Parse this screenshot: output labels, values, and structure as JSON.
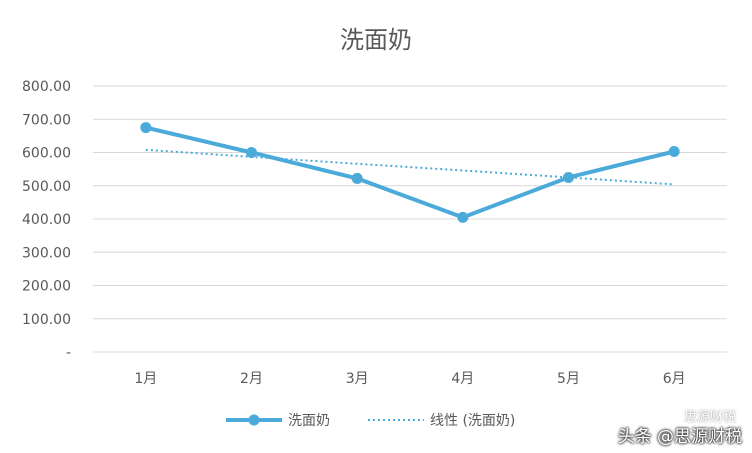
{
  "chart_data": {
    "type": "line",
    "title": "洗面奶",
    "categories": [
      "1月",
      "2月",
      "3月",
      "4月",
      "5月",
      "6月"
    ],
    "series": [
      {
        "name": "洗面奶",
        "values": [
          675,
          600,
          522,
          405,
          525,
          603
        ],
        "color": "#4baad9",
        "style": "solid-markers"
      },
      {
        "name": "线性 (洗面奶)",
        "values": [
          608,
          587,
          566,
          546,
          525,
          504
        ],
        "color": "#4baad9",
        "style": "dotted"
      }
    ],
    "y_ticks": [
      "-",
      "100.00",
      "200.00",
      "300.00",
      "400.00",
      "500.00",
      "600.00",
      "700.00",
      "800.00"
    ],
    "ylim": [
      0,
      800
    ],
    "grid": true,
    "legend_position": "bottom"
  },
  "watermark": {
    "text": "头条 @思源财税",
    "overlay": "思源财税"
  }
}
